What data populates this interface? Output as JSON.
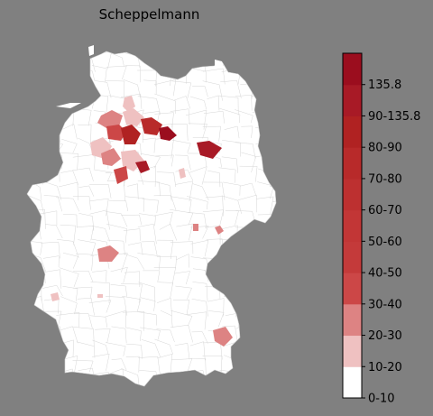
{
  "title": "Scheppelmann",
  "legend": {
    "bins": [
      {
        "label": "0-10",
        "color": "#ffffff"
      },
      {
        "label": "10-20",
        "color": "#efc1c1"
      },
      {
        "label": "20-30",
        "color": "#dd8383"
      },
      {
        "label": "30-40",
        "color": "#cc4747"
      },
      {
        "label": "40-50",
        "color": "#c43a3a"
      },
      {
        "label": "50-60",
        "color": "#c23636"
      },
      {
        "label": "60-70",
        "color": "#bd3030"
      },
      {
        "label": "70-80",
        "color": "#b82a2a"
      },
      {
        "label": "80-90",
        "color": "#b02222"
      },
      {
        "label": "90-135.8",
        "color": "#a81a26"
      },
      {
        "label": "",
        "color": "#9b0d1e"
      }
    ],
    "max_label": "135.8"
  },
  "colors": {
    "background": "#808080",
    "land": "#ffffff",
    "border": "#bbbbbb"
  }
}
